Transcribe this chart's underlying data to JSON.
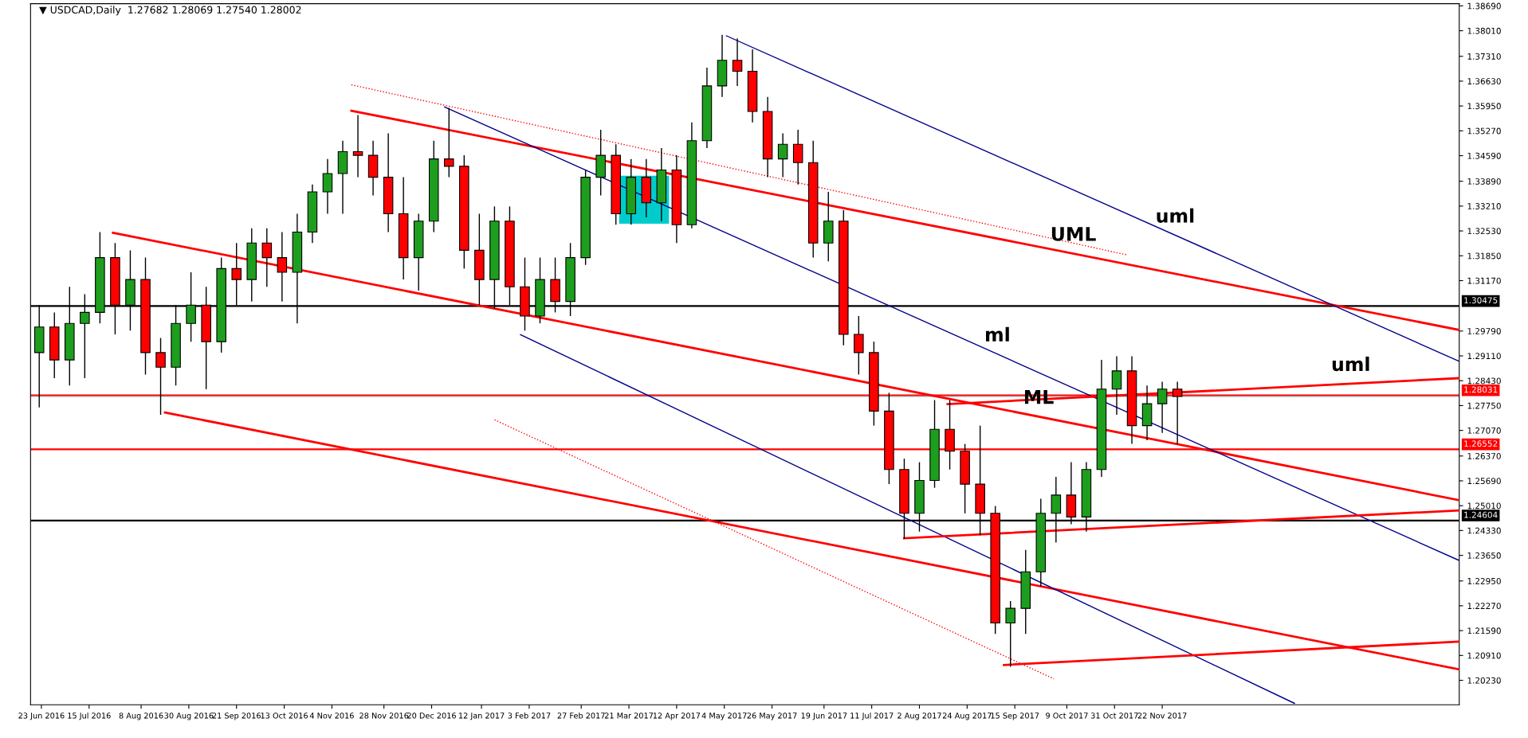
{
  "chart_data": {
    "type": "candlestick",
    "title": "▼ USDCAD,Daily  1.27682 1.28069 1.27540 1.28002",
    "x": [
      "2016-06-22",
      "2016-06-29",
      "2016-07-06",
      "2016-07-13",
      "2016-07-20",
      "2016-07-27",
      "2016-08-03",
      "2016-08-10",
      "2016-08-17",
      "2016-08-24",
      "2016-08-31",
      "2016-09-07",
      "2016-09-14",
      "2016-09-21",
      "2016-09-28",
      "2016-10-05",
      "2016-10-12",
      "2016-10-19",
      "2016-10-26",
      "2016-11-02",
      "2016-11-09",
      "2016-11-16",
      "2016-11-23",
      "2016-11-30",
      "2016-12-07",
      "2016-12-14",
      "2016-12-21",
      "2016-12-28",
      "2017-01-04",
      "2017-01-11",
      "2017-01-18",
      "2017-01-25",
      "2017-02-01",
      "2017-02-08",
      "2017-02-15",
      "2017-02-22",
      "2017-03-01",
      "2017-03-08",
      "2017-03-15",
      "2017-03-22",
      "2017-03-29",
      "2017-04-05",
      "2017-04-12",
      "2017-04-19",
      "2017-04-26",
      "2017-05-03",
      "2017-05-10",
      "2017-05-17",
      "2017-05-24",
      "2017-05-31",
      "2017-06-07",
      "2017-06-14",
      "2017-06-21",
      "2017-06-28",
      "2017-07-05",
      "2017-07-12",
      "2017-07-19",
      "2017-07-26",
      "2017-08-02",
      "2017-08-09",
      "2017-08-16",
      "2017-08-23",
      "2017-08-30",
      "2017-09-06",
      "2017-09-13",
      "2017-09-20",
      "2017-09-27",
      "2017-10-04",
      "2017-10-11",
      "2017-10-18",
      "2017-10-25",
      "2017-11-01",
      "2017-11-08",
      "2017-11-15",
      "2017-11-22",
      "2017-11-29"
    ],
    "ohlc": [
      [
        1.292,
        1.305,
        1.277,
        1.299
      ],
      [
        1.299,
        1.303,
        1.285,
        1.29
      ],
      [
        1.29,
        1.31,
        1.283,
        1.3
      ],
      [
        1.3,
        1.308,
        1.285,
        1.303
      ],
      [
        1.303,
        1.325,
        1.3,
        1.318
      ],
      [
        1.318,
        1.322,
        1.297,
        1.305
      ],
      [
        1.305,
        1.32,
        1.298,
        1.312
      ],
      [
        1.312,
        1.318,
        1.286,
        1.292
      ],
      [
        1.292,
        1.296,
        1.275,
        1.288
      ],
      [
        1.288,
        1.305,
        1.283,
        1.3
      ],
      [
        1.3,
        1.314,
        1.295,
        1.305
      ],
      [
        1.305,
        1.31,
        1.282,
        1.295
      ],
      [
        1.295,
        1.318,
        1.292,
        1.315
      ],
      [
        1.315,
        1.322,
        1.305,
        1.312
      ],
      [
        1.312,
        1.326,
        1.306,
        1.322
      ],
      [
        1.322,
        1.326,
        1.31,
        1.318
      ],
      [
        1.318,
        1.325,
        1.306,
        1.314
      ],
      [
        1.314,
        1.33,
        1.3,
        1.325
      ],
      [
        1.325,
        1.338,
        1.322,
        1.336
      ],
      [
        1.336,
        1.345,
        1.33,
        1.341
      ],
      [
        1.341,
        1.35,
        1.33,
        1.347
      ],
      [
        1.347,
        1.357,
        1.34,
        1.346
      ],
      [
        1.346,
        1.35,
        1.335,
        1.34
      ],
      [
        1.34,
        1.352,
        1.325,
        1.33
      ],
      [
        1.33,
        1.34,
        1.312,
        1.318
      ],
      [
        1.318,
        1.33,
        1.309,
        1.328
      ],
      [
        1.328,
        1.35,
        1.325,
        1.345
      ],
      [
        1.345,
        1.359,
        1.34,
        1.343
      ],
      [
        1.343,
        1.346,
        1.315,
        1.32
      ],
      [
        1.32,
        1.33,
        1.305,
        1.312
      ],
      [
        1.312,
        1.332,
        1.304,
        1.328
      ],
      [
        1.328,
        1.332,
        1.305,
        1.31
      ],
      [
        1.31,
        1.318,
        1.298,
        1.302
      ],
      [
        1.302,
        1.318,
        1.3,
        1.312
      ],
      [
        1.312,
        1.318,
        1.303,
        1.306
      ],
      [
        1.306,
        1.322,
        1.302,
        1.318
      ],
      [
        1.318,
        1.342,
        1.316,
        1.34
      ],
      [
        1.34,
        1.353,
        1.335,
        1.346
      ],
      [
        1.346,
        1.349,
        1.327,
        1.33
      ],
      [
        1.33,
        1.345,
        1.327,
        1.34
      ],
      [
        1.34,
        1.345,
        1.329,
        1.333
      ],
      [
        1.333,
        1.348,
        1.328,
        1.342
      ],
      [
        1.342,
        1.346,
        1.322,
        1.327
      ],
      [
        1.327,
        1.355,
        1.326,
        1.35
      ],
      [
        1.35,
        1.37,
        1.348,
        1.365
      ],
      [
        1.365,
        1.379,
        1.362,
        1.372
      ],
      [
        1.372,
        1.378,
        1.365,
        1.369
      ],
      [
        1.369,
        1.375,
        1.355,
        1.358
      ],
      [
        1.358,
        1.362,
        1.34,
        1.345
      ],
      [
        1.345,
        1.352,
        1.34,
        1.349
      ],
      [
        1.349,
        1.353,
        1.338,
        1.344
      ],
      [
        1.344,
        1.35,
        1.318,
        1.322
      ],
      [
        1.322,
        1.336,
        1.317,
        1.328
      ],
      [
        1.328,
        1.331,
        1.294,
        1.297
      ],
      [
        1.297,
        1.302,
        1.286,
        1.292
      ],
      [
        1.292,
        1.295,
        1.272,
        1.276
      ],
      [
        1.276,
        1.281,
        1.256,
        1.26
      ],
      [
        1.26,
        1.263,
        1.241,
        1.248
      ],
      [
        1.248,
        1.262,
        1.243,
        1.257
      ],
      [
        1.257,
        1.279,
        1.255,
        1.271
      ],
      [
        1.271,
        1.279,
        1.26,
        1.265
      ],
      [
        1.265,
        1.267,
        1.248,
        1.256
      ],
      [
        1.256,
        1.272,
        1.242,
        1.248
      ],
      [
        1.248,
        1.25,
        1.215,
        1.218
      ],
      [
        1.218,
        1.224,
        1.206,
        1.222
      ],
      [
        1.222,
        1.238,
        1.215,
        1.232
      ],
      [
        1.232,
        1.252,
        1.228,
        1.248
      ],
      [
        1.248,
        1.258,
        1.24,
        1.253
      ],
      [
        1.253,
        1.262,
        1.245,
        1.247
      ],
      [
        1.247,
        1.262,
        1.243,
        1.26
      ],
      [
        1.26,
        1.29,
        1.258,
        1.282
      ],
      [
        1.282,
        1.291,
        1.275,
        1.287
      ],
      [
        1.287,
        1.291,
        1.267,
        1.272
      ],
      [
        1.272,
        1.283,
        1.268,
        1.278
      ],
      [
        1.278,
        1.284,
        1.27,
        1.282
      ],
      [
        1.282,
        1.284,
        1.267,
        1.28
      ]
    ],
    "colors": [
      "#1e9e1e",
      "#ff0000",
      "#1e9e1e",
      "#1e9e1e",
      "#1e9e1e",
      "#ff0000",
      "#1e9e1e",
      "#ff0000",
      "#ff0000",
      "#1e9e1e",
      "#1e9e1e",
      "#ff0000",
      "#1e9e1e",
      "#ff0000",
      "#1e9e1e",
      "#ff0000",
      "#ff0000",
      "#1e9e1e",
      "#1e9e1e",
      "#1e9e1e",
      "#1e9e1e",
      "#ff0000",
      "#ff0000",
      "#ff0000",
      "#ff0000",
      "#1e9e1e",
      "#1e9e1e",
      "#ff0000",
      "#ff0000",
      "#ff0000",
      "#1e9e1e",
      "#ff0000",
      "#ff0000",
      "#1e9e1e",
      "#ff0000",
      "#1e9e1e",
      "#1e9e1e",
      "#1e9e1e",
      "#ff0000",
      "#1e9e1e",
      "#ff0000",
      "#1e9e1e",
      "#ff0000",
      "#1e9e1e",
      "#1e9e1e",
      "#1e9e1e",
      "#ff0000",
      "#ff0000",
      "#ff0000",
      "#1e9e1e",
      "#ff0000",
      "#ff0000",
      "#1e9e1e",
      "#ff0000",
      "#ff0000",
      "#ff0000",
      "#ff0000",
      "#ff0000",
      "#1e9e1e",
      "#1e9e1e",
      "#ff0000",
      "#ff0000",
      "#ff0000",
      "#ff0000",
      "#1e9e1e",
      "#1e9e1e",
      "#1e9e1e",
      "#1e9e1e",
      "#ff0000",
      "#1e9e1e",
      "#1e9e1e",
      "#1e9e1e",
      "#ff0000",
      "#1e9e1e",
      "#1e9e1e",
      "#ff0000"
    ],
    "series": [
      {
        "type": "bar",
        "color": "#00cccc",
        "x": [
          "2017-03-28"
        ],
        "base": [
          1.3273
        ],
        "values": [
          0.0131
        ]
      },
      {
        "type": "line",
        "color": "#ff0000",
        "line_style": "solid",
        "x": [
          "2016-07-26",
          "2018-04-08"
        ],
        "values": [
          1.3248,
          1.2516
        ]
      },
      {
        "type": "line",
        "color": "#ff0000",
        "line_style": "solid",
        "x": [
          "2016-08-19",
          "2018-04-08"
        ],
        "values": [
          1.2756,
          1.2053
        ]
      },
      {
        "type": "line",
        "color": "#ff0000",
        "line_style": "solid",
        "x": [
          "2016-11-13",
          "2018-04-08"
        ],
        "values": [
          1.3582,
          1.2982
        ]
      },
      {
        "type": "line",
        "color": "#ff0000",
        "line_style": "dotted",
        "x": [
          "2016-11-13",
          "2017-11-06"
        ],
        "values": [
          1.3653,
          1.3187
        ]
      },
      {
        "type": "line",
        "color": "#ff0000",
        "line_style": "dotted",
        "x": [
          "2017-01-18",
          "2017-10-03"
        ],
        "values": [
          1.2736,
          1.2027
        ]
      },
      {
        "type": "line",
        "color": "#00008b",
        "line_style": "solid",
        "x": [
          "2016-12-26",
          "2018-04-08"
        ],
        "values": [
          1.3592,
          1.2351
        ]
      },
      {
        "type": "line",
        "color": "#00008b",
        "line_style": "solid",
        "x": [
          "2017-01-30",
          "2018-01-22"
        ],
        "values": [
          1.2969,
          1.196
        ]
      },
      {
        "type": "line",
        "color": "#00008b",
        "line_style": "solid",
        "x": [
          "2017-05-05",
          "2018-04-08"
        ],
        "values": [
          1.3787,
          1.2896
        ]
      },
      {
        "type": "line",
        "color": "#ff0000",
        "line_style": "solid",
        "x": [
          "2017-07-26",
          "2018-04-08"
        ],
        "values": [
          1.2412,
          1.2488
        ]
      },
      {
        "type": "line",
        "color": "#ff0000",
        "line_style": "solid",
        "x": [
          "2017-09-10",
          "2018-04-08"
        ],
        "values": [
          1.2065,
          1.2129
        ]
      },
      {
        "type": "line",
        "color": "#ff0000",
        "line_style": "solid",
        "x": [
          "2017-08-15",
          "2018-04-08"
        ],
        "values": [
          1.2779,
          1.285
        ]
      }
    ],
    "ref_lines": [
      {
        "axis": "y",
        "value": 1.30475,
        "label": "1.30475",
        "color": "#000000"
      },
      {
        "axis": "y",
        "value": 1.28031,
        "label": "1.28031",
        "color": "#ff0000"
      },
      {
        "axis": "y",
        "value": 1.28002,
        "label": null,
        "color": "#a0a0a0"
      },
      {
        "axis": "y",
        "value": 1.26552,
        "label": "1.26552",
        "color": "#ff0000"
      },
      {
        "axis": "y",
        "value": 1.24604,
        "label": "1.24604",
        "color": "#000000"
      }
    ],
    "annotations": [
      {
        "text": "uml",
        "x": "2017-11-28",
        "y": 1.3241
      },
      {
        "text": "UML",
        "x": "2017-10-12",
        "y": 1.3191
      },
      {
        "text": "ml",
        "x": "2017-09-07",
        "y": 1.2916
      },
      {
        "text": "ML",
        "x": "2017-09-26",
        "y": 1.2745
      },
      {
        "text": "uml",
        "x": "2018-02-17",
        "y": 1.2835
      }
    ],
    "xlim": [
      "2016-06-18",
      "2018-04-08"
    ],
    "xticks": [
      {
        "value": "2016-06-23",
        "label": "23 Jun 2016"
      },
      {
        "value": "2016-07-15",
        "label": "15 Jul 2016"
      },
      {
        "value": "2016-08-08",
        "label": "8 Aug 2016"
      },
      {
        "value": "2016-08-30",
        "label": "30 Aug 2016"
      },
      {
        "value": "2016-09-21",
        "label": "21 Sep 2016"
      },
      {
        "value": "2016-10-13",
        "label": "13 Oct 2016"
      },
      {
        "value": "2016-11-04",
        "label": "4 Nov 2016"
      },
      {
        "value": "2016-11-28",
        "label": "28 Nov 2016"
      },
      {
        "value": "2016-12-20",
        "label": "20 Dec 2016"
      },
      {
        "value": "2017-01-12",
        "label": "12 Jan 2017"
      },
      {
        "value": "2017-02-03",
        "label": "3 Feb 2017"
      },
      {
        "value": "2017-02-27",
        "label": "27 Feb 2017"
      },
      {
        "value": "2017-03-21",
        "label": "21 Mar 2017"
      },
      {
        "value": "2017-04-12",
        "label": "12 Apr 2017"
      },
      {
        "value": "2017-05-04",
        "label": "4 May 2017"
      },
      {
        "value": "2017-05-26",
        "label": "26 May 2017"
      },
      {
        "value": "2017-06-19",
        "label": "19 Jun 2017"
      },
      {
        "value": "2017-07-11",
        "label": "11 Jul 2017"
      },
      {
        "value": "2017-08-02",
        "label": "2 Aug 2017"
      },
      {
        "value": "2017-08-24",
        "label": "24 Aug 2017"
      },
      {
        "value": "2017-09-15",
        "label": "15 Sep 2017"
      },
      {
        "value": "2017-10-09",
        "label": "9 Oct 2017"
      },
      {
        "value": "2017-10-31",
        "label": "31 Oct 2017"
      },
      {
        "value": "2017-11-22",
        "label": "22 Nov 2017"
      }
    ],
    "ylim": [
      1.1956,
      1.3875
    ],
    "yticks": [
      {
        "value": 1.2023,
        "label": "1.20230"
      },
      {
        "value": 1.2091,
        "label": "1.20910"
      },
      {
        "value": 1.2159,
        "label": "1.21590"
      },
      {
        "value": 1.2227,
        "label": "1.22270"
      },
      {
        "value": 1.2295,
        "label": "1.22950"
      },
      {
        "value": 1.2365,
        "label": "1.23650"
      },
      {
        "value": 1.2433,
        "label": "1.24330"
      },
      {
        "value": 1.2501,
        "label": "1.25010"
      },
      {
        "value": 1.2569,
        "label": "1.25690"
      },
      {
        "value": 1.2637,
        "label": "1.26370"
      },
      {
        "value": 1.2707,
        "label": "1.27070"
      },
      {
        "value": 1.2775,
        "label": "1.27750"
      },
      {
        "value": 1.2843,
        "label": "1.28430"
      },
      {
        "value": 1.2911,
        "label": "1.29110"
      },
      {
        "value": 1.2979,
        "label": "1.29790"
      },
      {
        "value": 1.3117,
        "label": "1.31170"
      },
      {
        "value": 1.3185,
        "label": "1.31850"
      },
      {
        "value": 1.3253,
        "label": "1.32530"
      },
      {
        "value": 1.3321,
        "label": "1.33210"
      },
      {
        "value": 1.3389,
        "label": "1.33890"
      },
      {
        "value": 1.3459,
        "label": "1.34590"
      },
      {
        "value": 1.3527,
        "label": "1.35270"
      },
      {
        "value": 1.3595,
        "label": "1.35950"
      },
      {
        "value": 1.3663,
        "label": "1.36630"
      },
      {
        "value": 1.3731,
        "label": "1.37310"
      },
      {
        "value": 1.3801,
        "label": "1.38010"
      },
      {
        "value": 1.3869,
        "label": "1.38690"
      }
    ],
    "grid": false
  }
}
